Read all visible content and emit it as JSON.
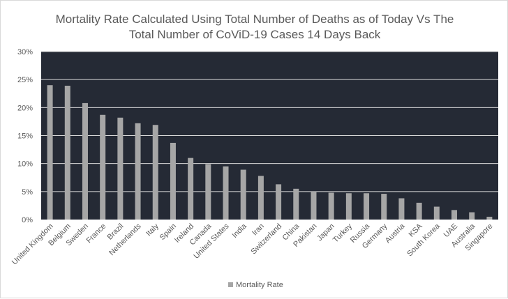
{
  "chart_data": {
    "type": "bar",
    "title_lines": [
      "Mortality Rate Calculated Using Total Number of Deaths as of Today Vs The",
      "Total Number of CoViD-19 Cases 14 Days Back"
    ],
    "categories": [
      "United Kingdom",
      "Belgium",
      "Sweden",
      "France",
      "Brazil",
      "Netherlands",
      "Italy",
      "Spain",
      "Ireland",
      "Canada",
      "United States",
      "India",
      "Iran",
      "Switzerland",
      "China",
      "Pakistan",
      "Japan",
      "Turkey",
      "Russia",
      "Germany",
      "Austria",
      "KSA",
      "South Korea",
      "UAE",
      "Australia",
      "Singapore"
    ],
    "series": [
      {
        "name": "Mortality Rate",
        "values": [
          24.0,
          23.9,
          20.8,
          18.7,
          18.2,
          17.2,
          16.9,
          13.7,
          11.0,
          9.9,
          9.5,
          8.9,
          7.8,
          6.3,
          5.5,
          5.0,
          4.8,
          4.7,
          4.7,
          4.6,
          3.8,
          3.0,
          2.3,
          1.7,
          1.3,
          0.5
        ]
      }
    ],
    "ylim": [
      0,
      30
    ],
    "yticks": [
      0,
      5,
      10,
      15,
      20,
      25,
      30
    ],
    "ytick_format": "{v}%",
    "grid": true,
    "legend_position": "bottom",
    "colors": {
      "plot_background": "#252a35",
      "bar": "#a6a6a6",
      "gridline": "#d9d9d9",
      "text": "#595959"
    }
  }
}
